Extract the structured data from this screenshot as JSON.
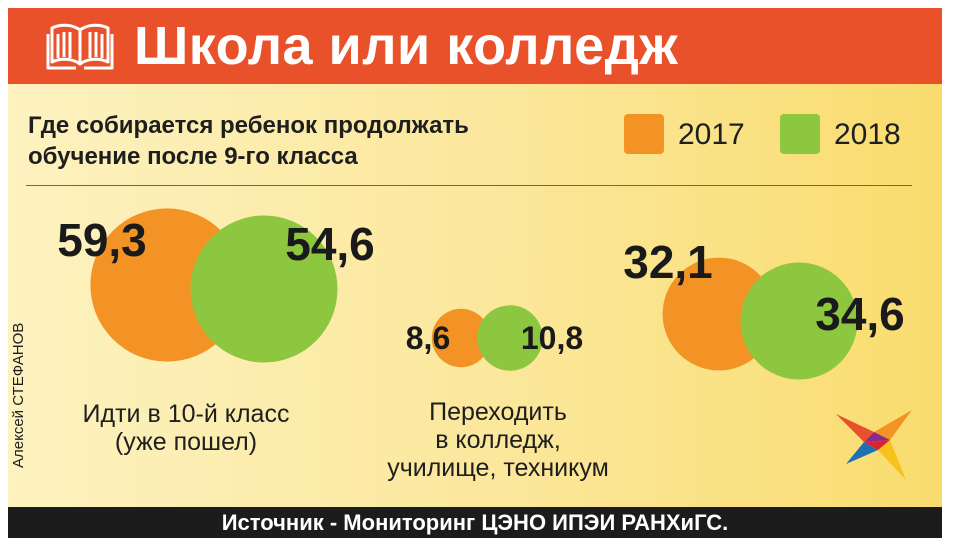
{
  "header": {
    "title": "Школа или колледж",
    "icon": "open-book-icon"
  },
  "subtitle": {
    "line1": "Где собирается ребенок продолжать",
    "line2": "обучение после 9-го класса"
  },
  "colors": {
    "header_bg": "#e8512a",
    "orange": "#f39325",
    "green": "#8dc63f",
    "footer_bg": "#1c1c1c"
  },
  "chart_data": {
    "type": "bubble",
    "unit": "%",
    "legend_position": "top-right",
    "series": [
      {
        "name": "2017",
        "color": "#f39325",
        "values": [
          59.3,
          8.6,
          32.1
        ]
      },
      {
        "name": "2018",
        "color": "#8dc63f",
        "values": [
          54.6,
          10.8,
          34.6
        ]
      }
    ],
    "categories": [
      "Идти в 10-й класс (уже пошел)",
      "Переходить в колледж, училище, техникум",
      ""
    ],
    "category_labels": [
      [
        "Идти в 10-й класс",
        "(уже пошел)"
      ],
      [
        "Переходить",
        "в колледж,",
        "училище, техникум"
      ],
      []
    ],
    "value_labels": [
      [
        "59,3",
        "54,6"
      ],
      [
        "8,6",
        "10,8"
      ],
      [
        "32,1",
        "34,6"
      ]
    ]
  },
  "author": "Алексей СТЕФАНОВ",
  "footer": {
    "source": "Источник - Мониторинг ЦЭНО ИПЭИ РАНХиГС."
  },
  "logo": {
    "icon": "bird-logo-icon"
  }
}
